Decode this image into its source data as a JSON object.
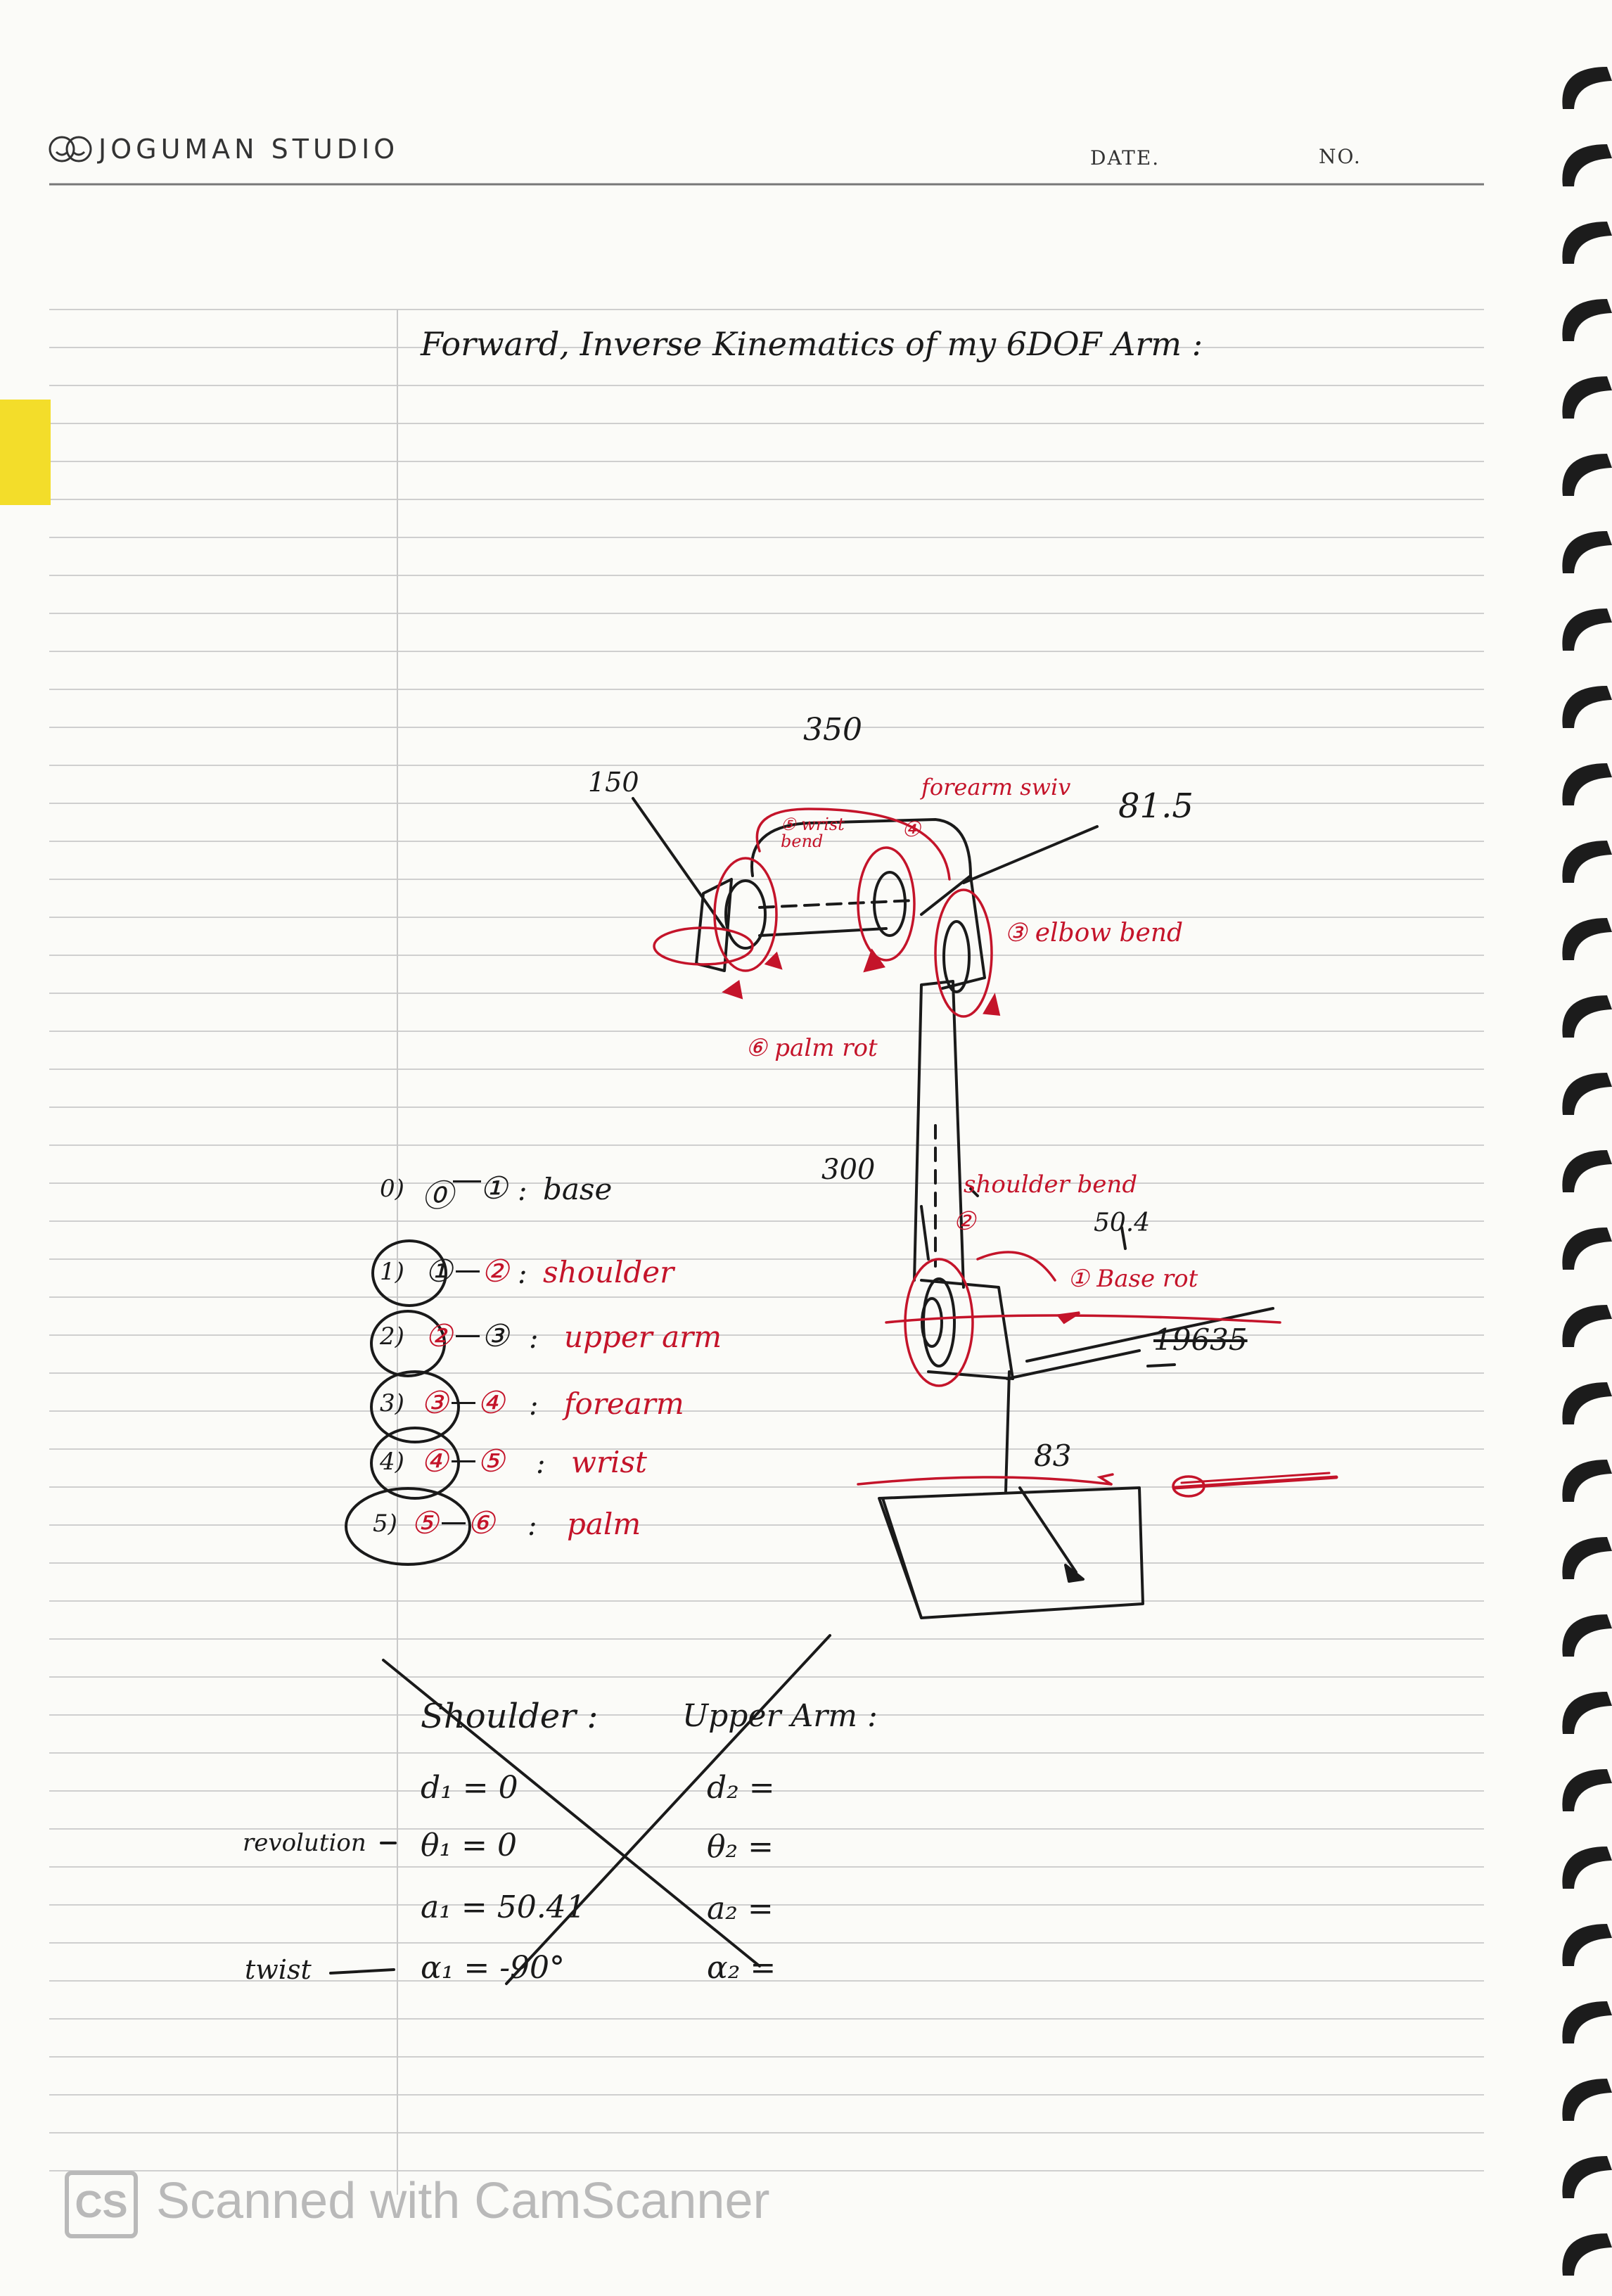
{
  "header": {
    "brand": "JOGUMAN STUDIO",
    "date_label": "DATE.",
    "no_label": "NO."
  },
  "title": "Forward, Inverse Kinematics of my 6DOF Arm :",
  "diagram": {
    "dims": {
      "d350": "350",
      "d150": "150",
      "d81_5": "81.5",
      "d300": "300",
      "d50_4": "50.4",
      "d19635": "19635",
      "d83": "83"
    },
    "joint_labels": {
      "forearm_swiv": "forearm swiv",
      "wrist_bend": "⑤ wrist bend",
      "j4": "④",
      "elbow_bend": "③ elbow bend",
      "palm_rot": "⑥ palm rot",
      "shoulder_bend": "shoulder bend",
      "j2": "②",
      "base_rot": "① Base rot"
    }
  },
  "links": [
    {
      "idx": "0)",
      "from": "⓪",
      "to": "①",
      "name": "base"
    },
    {
      "idx": "1)",
      "from": "①",
      "to": "②",
      "name": "shoulder"
    },
    {
      "idx": "2)",
      "from": "②",
      "to": "③",
      "name": "upper arm"
    },
    {
      "idx": "3)",
      "from": "③",
      "to": "④",
      "name": "forearm"
    },
    {
      "idx": "4)",
      "from": "④",
      "to": "⑤",
      "name": "wrist"
    },
    {
      "idx": "5)",
      "from": "⑤",
      "to": "⑥",
      "name": "palm"
    }
  ],
  "dh_table": {
    "shoulder_heading": "Shoulder :",
    "upper_arm_heading": "Upper Arm :",
    "revolution_label": "revolution",
    "twist_label": "twist",
    "shoulder_rows": [
      "d₁  =  0",
      "θ₁  =  0",
      "a₁  =  50.41",
      "α₁  =  -90°"
    ],
    "upper_arm_rows": [
      "d₂ =",
      "θ₂ =",
      "a₂ =",
      "α₂ ="
    ]
  },
  "footer": {
    "logo": "CS",
    "watermark": "Scanned with CamScanner"
  },
  "colors": {
    "ink": "#1a1a1a",
    "red_ink": "#c4142a",
    "tab": "#f3dd2a",
    "rule": "#c9c9c9"
  }
}
